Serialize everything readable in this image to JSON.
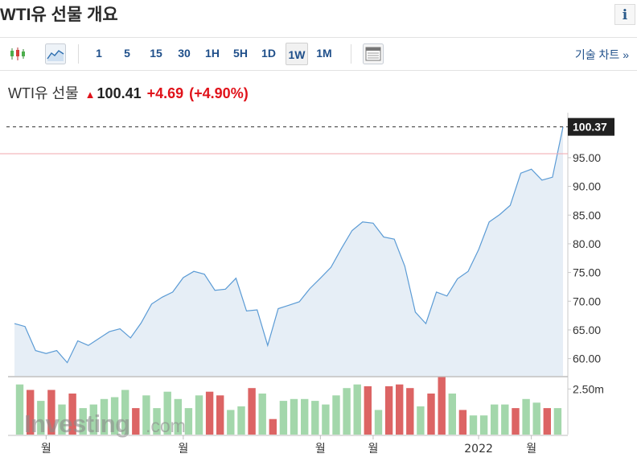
{
  "header": {
    "title": "WTI유 선물 개요",
    "info_icon_label": "i"
  },
  "toolbar": {
    "candle_icon": "candlestick-icon",
    "area_icon": "area-chart-icon",
    "timeframes": [
      "1",
      "5",
      "15",
      "30",
      "1H",
      "5H",
      "1D",
      "1W",
      "1M"
    ],
    "active_timeframe": "1W",
    "layout_icon": "layout-icon",
    "tech_chart_label": "기술 차트 »"
  },
  "quote": {
    "name": "WTI유 선물",
    "direction_icon": "up-arrow-icon",
    "price": "100.41",
    "change": "+4.69",
    "change_pct": "(+4.90%)"
  },
  "colors": {
    "line": "#5b9bd5",
    "area": "#e6eef6",
    "up_volume": "#a3d7ab",
    "down_volume": "#dc6464",
    "reference_line": "#f2a7ad",
    "positive": "#e0121a"
  },
  "chart_data": {
    "type": "area",
    "ylim": [
      57,
      102
    ],
    "y_ticks": [
      "100.37",
      "95.00",
      "90.00",
      "85.00",
      "80.00",
      "75.00",
      "70.00",
      "65.00",
      "60.00"
    ],
    "last_value_label": "100.37",
    "last_value": 100.37,
    "reference_value": 95.7,
    "x_labels": [
      "월",
      "월",
      "월",
      "월",
      "2022",
      "월"
    ],
    "x_label_positions": [
      3,
      16,
      29,
      34,
      44,
      49
    ],
    "series": [
      {
        "values": [
          66.1,
          65.6,
          61.4,
          60.9,
          61.4,
          59.3,
          63.1,
          62.3,
          63.5,
          64.7,
          65.2,
          63.6,
          66.2,
          69.5,
          70.7,
          71.6,
          74.1,
          75.2,
          74.7,
          71.9,
          72.1,
          74.0,
          68.3,
          68.5,
          62.3,
          68.7,
          69.3,
          69.9,
          72.2,
          74.0,
          75.9,
          79.2,
          82.3,
          83.8,
          83.6,
          81.2,
          80.8,
          76.1,
          68.1,
          66.1,
          71.6,
          70.9,
          73.9,
          75.2,
          79.0,
          83.8,
          85.1,
          86.7,
          92.3,
          93.0,
          91.1,
          91.6,
          100.37
        ]
      }
    ],
    "volume": {
      "label": "2.50m",
      "max": 3.0,
      "values": [
        2.75,
        2.45,
        1.85,
        2.45,
        1.65,
        2.25,
        1.45,
        1.65,
        1.95,
        2.05,
        2.45,
        1.45,
        2.15,
        1.45,
        2.35,
        1.95,
        1.45,
        2.15,
        2.35,
        2.15,
        1.35,
        1.55,
        2.55,
        2.25,
        0.85,
        1.85,
        1.95,
        1.95,
        1.85,
        1.65,
        2.15,
        2.55,
        2.75,
        2.65,
        1.35,
        2.65,
        2.75,
        2.55,
        1.55,
        2.25,
        3.15,
        2.25,
        1.35,
        1.05,
        1.05,
        1.65,
        1.65,
        1.45,
        1.95,
        1.75,
        1.45,
        1.45
      ],
      "directions": [
        "u",
        "d",
        "u",
        "d",
        "u",
        "d",
        "u",
        "u",
        "u",
        "u",
        "u",
        "d",
        "u",
        "u",
        "u",
        "u",
        "u",
        "u",
        "d",
        "d",
        "u",
        "u",
        "d",
        "u",
        "d",
        "u",
        "u",
        "u",
        "u",
        "u",
        "u",
        "u",
        "u",
        "d",
        "u",
        "d",
        "d",
        "d",
        "u",
        "d",
        "d",
        "u",
        "d",
        "u",
        "u",
        "u",
        "u",
        "d",
        "u",
        "u",
        "d",
        "u"
      ]
    }
  },
  "watermark": {
    "brand": "Investing",
    "suffix": ".com"
  }
}
